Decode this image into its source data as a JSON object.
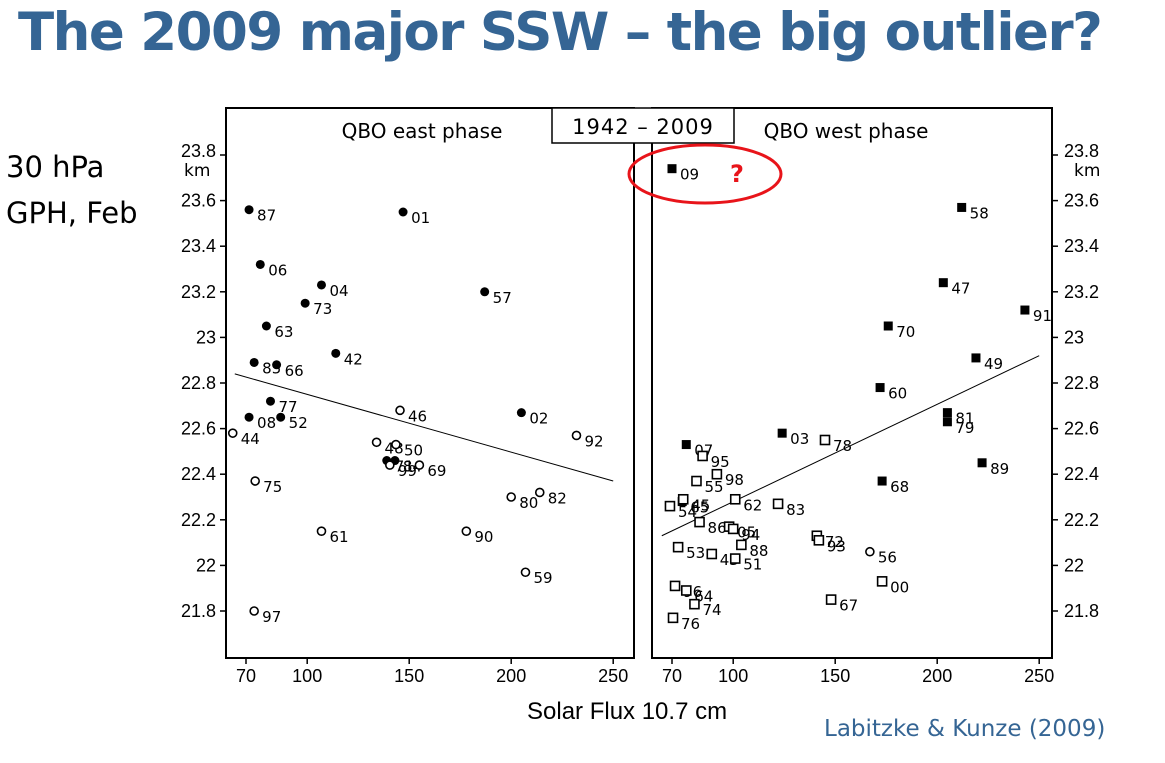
{
  "slide": {
    "title": "The 2009 major SSW – the big outlier?",
    "side_label_line1": "30 hPa",
    "side_label_line2": "GPH, Feb",
    "credit": "Labitzke & Kunze (2009)",
    "accent_color": "#356594",
    "highlight_color": "#e8141a"
  },
  "chart_data": {
    "type": "scatter",
    "title": "1942 – 2009",
    "xlabel": "Solar Flux 10.7 cm",
    "ylabel_unit": "km",
    "xlim": [
      60,
      260
    ],
    "ylim": [
      21.6,
      24.0
    ],
    "xticks": [
      70,
      100,
      150,
      200,
      250
    ],
    "yticks": [
      21.8,
      22,
      22.2,
      22.4,
      22.6,
      22.8,
      23,
      23.2,
      23.4,
      23.6,
      23.8
    ],
    "ytick_labels": [
      "21.8",
      "22",
      "22.2",
      "22.4",
      "22.6",
      "22.8",
      "23",
      "23.2",
      "23.4",
      "23.6",
      "23.8"
    ],
    "grid": false,
    "marker_legend": {
      "filled": "major warming (filled marker)",
      "open": "no major warming (open marker)"
    },
    "panels": [
      {
        "name": "QBO east phase",
        "marker": "circle",
        "regression": {
          "x": [
            64.5,
            250
          ],
          "y": [
            22.84,
            22.37
          ]
        },
        "points": [
          {
            "label": "87",
            "x": 71.5,
            "y": 23.56,
            "filled": true
          },
          {
            "label": "01",
            "x": 147,
            "y": 23.55,
            "filled": true
          },
          {
            "label": "06",
            "x": 77,
            "y": 23.32,
            "filled": true
          },
          {
            "label": "04",
            "x": 107,
            "y": 23.23,
            "filled": true
          },
          {
            "label": "57",
            "x": 187,
            "y": 23.2,
            "filled": true
          },
          {
            "label": "73",
            "x": 99,
            "y": 23.15,
            "filled": true
          },
          {
            "label": "63",
            "x": 80,
            "y": 23.05,
            "filled": true
          },
          {
            "label": "42",
            "x": 114,
            "y": 22.93,
            "filled": true
          },
          {
            "label": "85",
            "x": 74,
            "y": 22.89,
            "filled": true
          },
          {
            "label": "66",
            "x": 85,
            "y": 22.88,
            "filled": true
          },
          {
            "label": "77",
            "x": 82,
            "y": 22.72,
            "filled": true
          },
          {
            "label": "08",
            "x": 71.5,
            "y": 22.65,
            "filled": true
          },
          {
            "label": "52",
            "x": 87,
            "y": 22.65,
            "filled": true
          },
          {
            "label": "02",
            "x": 205,
            "y": 22.67,
            "filled": true
          },
          {
            "label": "71",
            "x": 139,
            "y": 22.46,
            "filled": true
          },
          {
            "label": "84",
            "x": 143,
            "y": 22.46,
            "filled": true
          },
          {
            "label": "46",
            "x": 145.5,
            "y": 22.68,
            "filled": false
          },
          {
            "label": "44",
            "x": 63.5,
            "y": 22.58,
            "filled": false
          },
          {
            "label": "92",
            "x": 232,
            "y": 22.57,
            "filled": false
          },
          {
            "label": "48",
            "x": 134,
            "y": 22.54,
            "filled": false
          },
          {
            "label": "50",
            "x": 143.5,
            "y": 22.53,
            "filled": false
          },
          {
            "label": "99",
            "x": 140.5,
            "y": 22.44,
            "filled": false
          },
          {
            "label": "69",
            "x": 155,
            "y": 22.44,
            "filled": false
          },
          {
            "label": "75",
            "x": 74.5,
            "y": 22.37,
            "filled": false
          },
          {
            "label": "82",
            "x": 214,
            "y": 22.32,
            "filled": false
          },
          {
            "label": "80",
            "x": 200,
            "y": 22.3,
            "filled": false
          },
          {
            "label": "61",
            "x": 107,
            "y": 22.15,
            "filled": false
          },
          {
            "label": "90",
            "x": 178,
            "y": 22.15,
            "filled": false
          },
          {
            "label": "59",
            "x": 207,
            "y": 21.97,
            "filled": false
          },
          {
            "label": "97",
            "x": 74,
            "y": 21.8,
            "filled": false
          }
        ]
      },
      {
        "name": "QBO west phase",
        "marker": "square",
        "regression": {
          "x": [
            65,
            250
          ],
          "y": [
            22.13,
            22.92
          ]
        },
        "highlight": {
          "label": "09",
          "annotation": "?"
        },
        "points": [
          {
            "label": "09",
            "x": 70,
            "y": 23.74,
            "filled": true
          },
          {
            "label": "58",
            "x": 212,
            "y": 23.57,
            "filled": true
          },
          {
            "label": "47",
            "x": 203,
            "y": 23.24,
            "filled": true
          },
          {
            "label": "91",
            "x": 243,
            "y": 23.12,
            "filled": true
          },
          {
            "label": "70",
            "x": 176,
            "y": 23.05,
            "filled": true
          },
          {
            "label": "49",
            "x": 219,
            "y": 22.91,
            "filled": true
          },
          {
            "label": "60",
            "x": 172,
            "y": 22.78,
            "filled": true
          },
          {
            "label": "81",
            "x": 205,
            "y": 22.67,
            "filled": true
          },
          {
            "label": "79",
            "x": 205,
            "y": 22.63,
            "filled": true
          },
          {
            "label": "89",
            "x": 222,
            "y": 22.45,
            "filled": true
          },
          {
            "label": "07",
            "x": 77,
            "y": 22.53,
            "filled": true
          },
          {
            "label": "03",
            "x": 124,
            "y": 22.58,
            "filled": true
          },
          {
            "label": "68",
            "x": 173,
            "y": 22.37,
            "filled": true
          },
          {
            "label": "65",
            "x": 75,
            "y": 22.28,
            "filled": true
          },
          {
            "label": "78",
            "x": 145,
            "y": 22.55,
            "filled": false
          },
          {
            "label": "95",
            "x": 85,
            "y": 22.48,
            "filled": false
          },
          {
            "label": "98",
            "x": 92,
            "y": 22.4,
            "filled": false
          },
          {
            "label": "55",
            "x": 82,
            "y": 22.37,
            "filled": false
          },
          {
            "label": "45",
            "x": 75.5,
            "y": 22.29,
            "filled": false
          },
          {
            "label": "54",
            "x": 69,
            "y": 22.26,
            "filled": false
          },
          {
            "label": "62",
            "x": 101,
            "y": 22.29,
            "filled": false
          },
          {
            "label": "83",
            "x": 122,
            "y": 22.27,
            "filled": false
          },
          {
            "label": "86",
            "x": 83.5,
            "y": 22.19,
            "filled": false
          },
          {
            "label": "05",
            "x": 98,
            "y": 22.17,
            "filled": false
          },
          {
            "label": "94",
            "x": 100,
            "y": 22.16,
            "filled": false
          },
          {
            "label": "72",
            "x": 141,
            "y": 22.13,
            "filled": false
          },
          {
            "label": "93",
            "x": 142,
            "y": 22.11,
            "filled": false
          },
          {
            "label": "53",
            "x": 73,
            "y": 22.08,
            "filled": false
          },
          {
            "label": "88",
            "x": 104,
            "y": 22.09,
            "filled": false
          },
          {
            "label": "43",
            "x": 89.5,
            "y": 22.05,
            "filled": false
          },
          {
            "label": "51",
            "x": 101,
            "y": 22.03,
            "filled": false
          },
          {
            "label": "00",
            "x": 173,
            "y": 21.93,
            "filled": false
          },
          {
            "label": "96",
            "x": 71.5,
            "y": 21.91,
            "filled": false
          },
          {
            "label": "64",
            "x": 77,
            "y": 21.89,
            "filled": false
          },
          {
            "label": "74",
            "x": 81,
            "y": 21.83,
            "filled": false
          },
          {
            "label": "67",
            "x": 148,
            "y": 21.85,
            "filled": false
          },
          {
            "label": "76",
            "x": 70.5,
            "y": 21.77,
            "filled": false
          },
          {
            "label": "56",
            "x": 167,
            "y": 22.06,
            "filled": false,
            "marker": "circle"
          }
        ]
      }
    ]
  }
}
